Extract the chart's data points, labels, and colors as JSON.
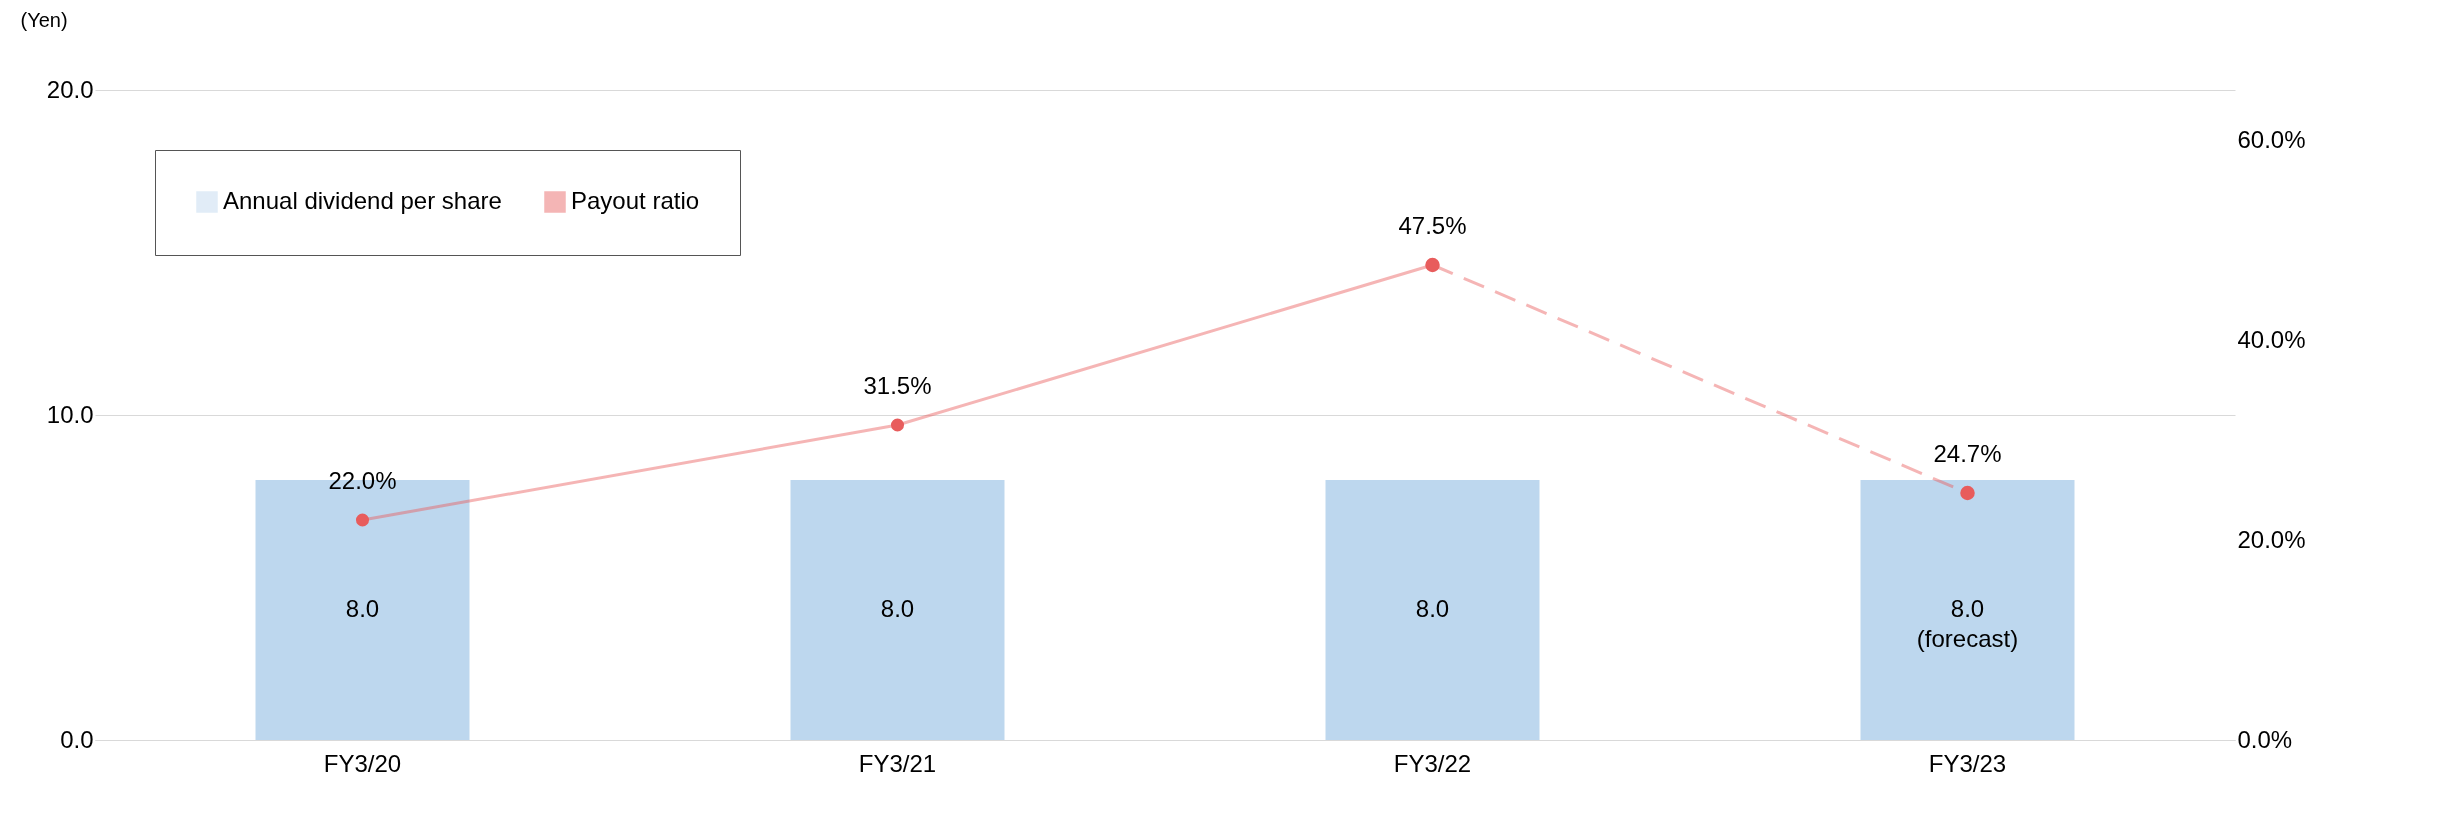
{
  "chart_data": {
    "type": "bar",
    "ylabel": "(Yen)",
    "categories": [
      "FY3/20",
      "FY3/21",
      "FY3/22",
      "FY3/23"
    ],
    "series": [
      {
        "name": "Annual dividend per share",
        "color": "#bdd7ee",
        "values": [
          8.0,
          8.0,
          8.0,
          8.0
        ],
        "value_labels": [
          "8.0",
          "8.0",
          "8.0",
          "8.0\n(forecast)"
        ]
      },
      {
        "name": "Payout ratio",
        "type": "line",
        "axis": "y2",
        "color": "#e85c5c",
        "line_style": "solid",
        "values": [
          22.0,
          31.5,
          47.5,
          null
        ],
        "value_labels": [
          "22.0%",
          "31.5%",
          "47.5%",
          null
        ]
      },
      {
        "type": "line",
        "axis": "y2",
        "color": "#e85c5c",
        "line_style": "dashed",
        "values": [
          null,
          null,
          47.5,
          24.7
        ],
        "value_labels": [
          null,
          null,
          null,
          "24.7%"
        ]
      }
    ],
    "ylim": [
      0,
      20
    ],
    "yticks": [
      {
        "value": 0,
        "label": "0.0"
      },
      {
        "value": 10,
        "label": "10.0"
      },
      {
        "value": 20,
        "label": "20.0"
      }
    ],
    "y2lim": [
      0,
      65
    ],
    "y2ticks": [
      {
        "value": 0,
        "label": "0.0%"
      },
      {
        "value": 20,
        "label": "20.0%"
      },
      {
        "value": 40,
        "label": "40.0%"
      },
      {
        "value": 60,
        "label": "60.0%"
      }
    ],
    "grid": "y",
    "legend": "top left",
    "marker": "circle"
  }
}
